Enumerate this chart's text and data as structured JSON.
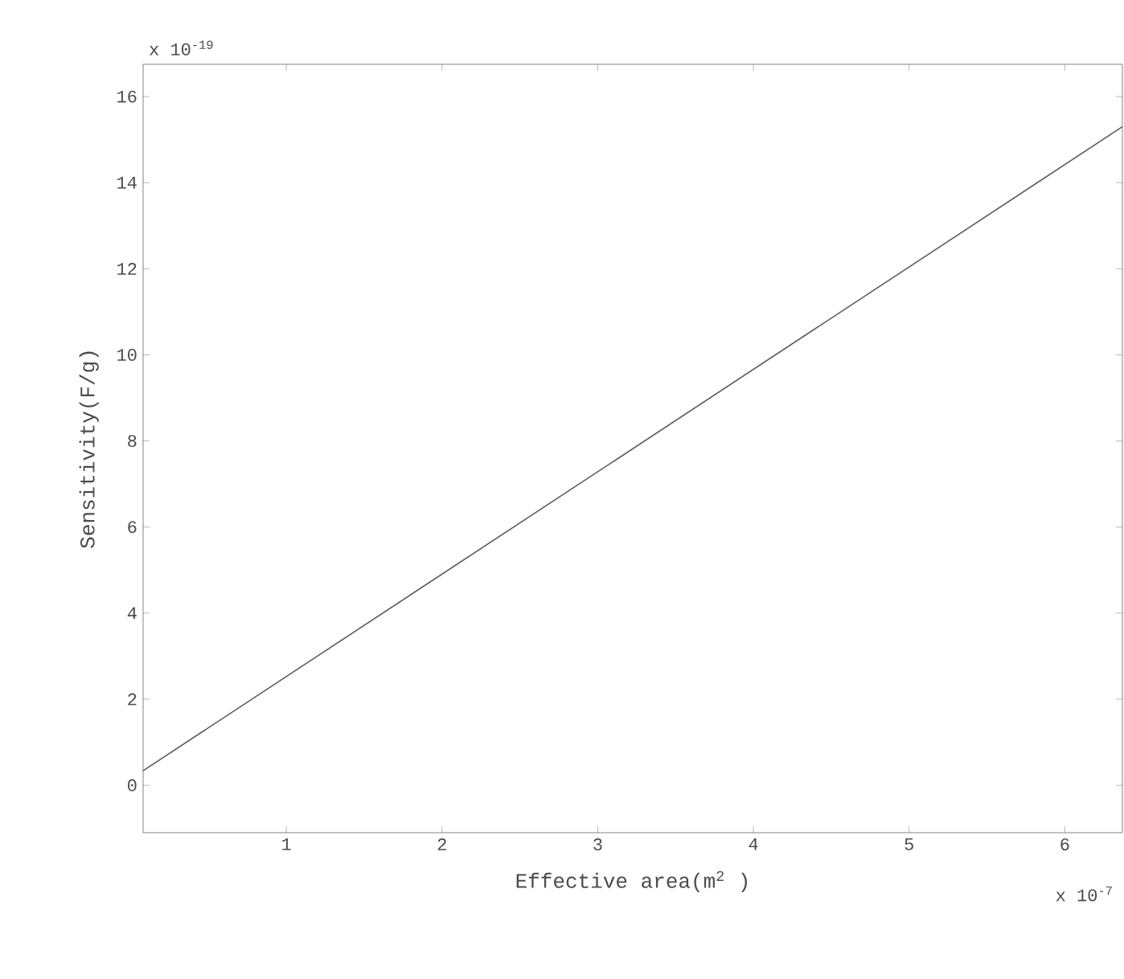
{
  "chart_data": {
    "type": "line",
    "xlabel": "Effective area(m$^{2}$ )",
    "ylabel": "Sensitivity(F/g)",
    "annotations": [
      "x 10$^{-19}$",
      "x 10$^{-7}$"
    ],
    "x": [
      0.08,
      6.37
    ],
    "series": [
      {
        "color": "#5a5a5a",
        "values": [
          0.34,
          15.3
        ]
      }
    ],
    "xlim": [
      0.08,
      6.37
    ],
    "ylim": [
      -1.1,
      16.75
    ],
    "xticks": [
      1,
      2,
      3,
      4,
      5,
      6
    ],
    "yticks": [
      0,
      2,
      4,
      6,
      8,
      10,
      12,
      14,
      16
    ],
    "grid": false,
    "line_style": "solid"
  }
}
